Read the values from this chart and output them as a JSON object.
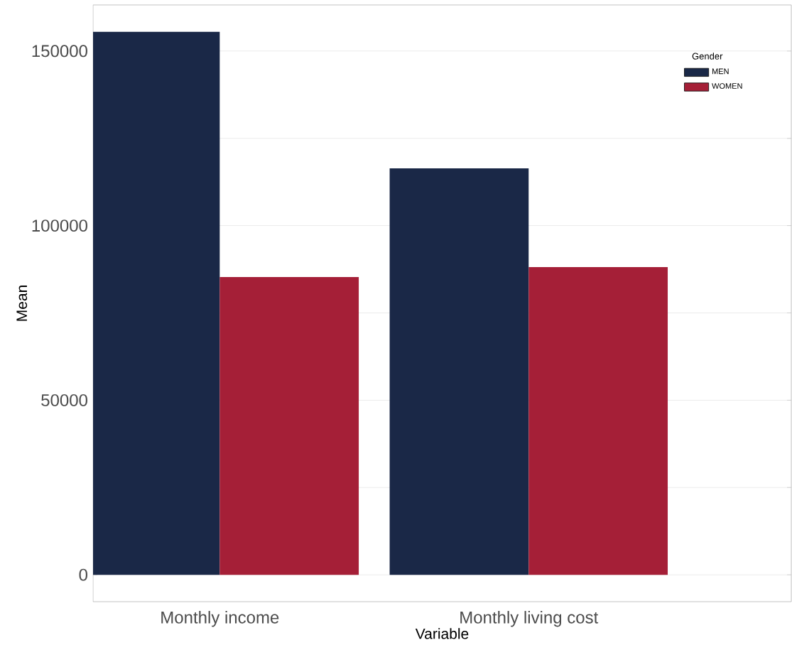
{
  "chart_data": {
    "type": "bar",
    "xlabel": "Variable",
    "ylabel": "Mean",
    "categories": [
      "Monthly income",
      "Monthly living cost"
    ],
    "series": [
      {
        "name": "MEN",
        "color": "#1a2847",
        "values": [
          155500,
          116400
        ]
      },
      {
        "name": "WOMEN",
        "color": "#a51f37",
        "values": [
          85300,
          88100
        ]
      }
    ],
    "ylim": [
      -7700,
      163200
    ],
    "yticks": [
      0,
      {
        "value": 25000,
        "label": null
      },
      50000,
      {
        "value": 75000,
        "label": null
      },
      100000,
      {
        "value": 125000,
        "label": null
      },
      150000
    ],
    "grid": "y",
    "legend": "top right",
    "legend_title": "Gender"
  }
}
